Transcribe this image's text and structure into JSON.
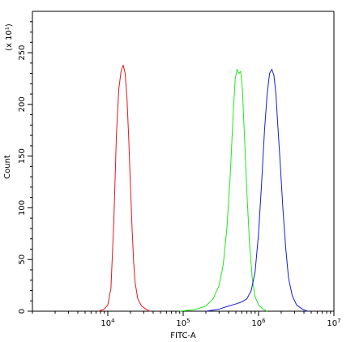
{
  "chart_data": {
    "type": "line",
    "xlabel": "FITC-A",
    "ylabel": "Count",
    "y_scale_note": "(x 10¹)",
    "x_scale": "log",
    "xlim": [
      1000,
      10000000
    ],
    "ylim": [
      0,
      290
    ],
    "x_ticks": [
      {
        "value": 10000,
        "base": "10",
        "exp": "4"
      },
      {
        "value": 100000,
        "base": "10",
        "exp": "5"
      },
      {
        "value": 1000000,
        "base": "10",
        "exp": "6"
      },
      {
        "value": 10000000,
        "base": "10",
        "exp": "7"
      }
    ],
    "y_ticks": [
      "0",
      "50",
      "100",
      "150",
      "200",
      "250"
    ],
    "grid": false,
    "legend": "none",
    "series": [
      {
        "color": "#e8141c",
        "points": [
          [
            7500,
            0
          ],
          [
            9000,
            2
          ],
          [
            10000,
            6
          ],
          [
            11000,
            22
          ],
          [
            12000,
            85
          ],
          [
            13000,
            170
          ],
          [
            14000,
            215
          ],
          [
            15000,
            232
          ],
          [
            16000,
            238
          ],
          [
            17000,
            230
          ],
          [
            18000,
            205
          ],
          [
            19000,
            165
          ],
          [
            20000,
            120
          ],
          [
            21000,
            80
          ],
          [
            22000,
            48
          ],
          [
            23000,
            28
          ],
          [
            25000,
            12
          ],
          [
            28000,
            5
          ],
          [
            32000,
            2
          ],
          [
            36000,
            0
          ]
        ]
      },
      {
        "color": "#1ee81e",
        "points": [
          [
            90000,
            0
          ],
          [
            120000,
            1
          ],
          [
            150000,
            2
          ],
          [
            200000,
            5
          ],
          [
            250000,
            12
          ],
          [
            300000,
            25
          ],
          [
            340000,
            45
          ],
          [
            380000,
            80
          ],
          [
            420000,
            130
          ],
          [
            460000,
            190
          ],
          [
            490000,
            225
          ],
          [
            520000,
            234
          ],
          [
            550000,
            230
          ],
          [
            580000,
            232
          ],
          [
            610000,
            215
          ],
          [
            650000,
            170
          ],
          [
            700000,
            115
          ],
          [
            760000,
            65
          ],
          [
            830000,
            30
          ],
          [
            900000,
            14
          ],
          [
            1000000,
            6
          ],
          [
            1150000,
            2
          ],
          [
            1300000,
            0
          ]
        ]
      },
      {
        "color": "#1a1adb",
        "points": [
          [
            200000,
            0
          ],
          [
            300000,
            2
          ],
          [
            400000,
            5
          ],
          [
            500000,
            7
          ],
          [
            600000,
            9
          ],
          [
            700000,
            12
          ],
          [
            800000,
            20
          ],
          [
            900000,
            38
          ],
          [
            1000000,
            75
          ],
          [
            1100000,
            125
          ],
          [
            1200000,
            175
          ],
          [
            1300000,
            210
          ],
          [
            1400000,
            230
          ],
          [
            1500000,
            234
          ],
          [
            1600000,
            228
          ],
          [
            1700000,
            210
          ],
          [
            1800000,
            180
          ],
          [
            1950000,
            140
          ],
          [
            2100000,
            100
          ],
          [
            2300000,
            60
          ],
          [
            2500000,
            32
          ],
          [
            2800000,
            15
          ],
          [
            3200000,
            6
          ],
          [
            3800000,
            2
          ],
          [
            4500000,
            0
          ]
        ]
      }
    ]
  }
}
